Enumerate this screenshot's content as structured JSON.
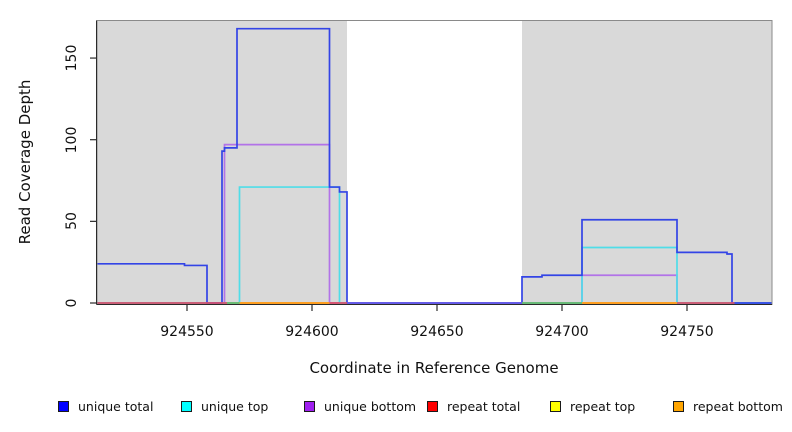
{
  "chart_data": {
    "type": "line",
    "title": "",
    "xlabel": "Coordinate in Reference Genome",
    "ylabel": "Read Coverage Depth",
    "xlim": [
      924514,
      924784
    ],
    "ylim": [
      0,
      173
    ],
    "x_ticks": [
      924550,
      924600,
      924650,
      924700,
      924750
    ],
    "y_ticks": [
      0,
      50,
      100,
      150
    ],
    "grid": false,
    "legend_position": "bottom",
    "shade_color": "#d9d9d9",
    "shaded_regions": [
      {
        "from": 924514,
        "to": 924614
      },
      {
        "from": 924684,
        "to": 924784
      }
    ],
    "series": [
      {
        "name": "repeat total",
        "line_color": "#d8506a",
        "legend_color": "#ff0000",
        "steps": [
          [
            924514,
            0
          ]
        ]
      },
      {
        "name": "repeat top",
        "line_color": "#e8e84a",
        "legend_color": "#ffff00",
        "steps": [
          [
            924514,
            0
          ]
        ]
      },
      {
        "name": "repeat bottom",
        "line_color": "#ff9d1e",
        "legend_color": "#ffa500",
        "steps": [
          [
            924514,
            0
          ]
        ]
      },
      {
        "name": "unique bottom",
        "line_color": "#b273e8",
        "legend_color": "#a020f0",
        "steps": [
          [
            924514,
            0
          ],
          [
            924565,
            97
          ],
          [
            924607,
            0
          ],
          [
            924708,
            17
          ],
          [
            924746,
            0
          ]
        ]
      },
      {
        "name": "unique top",
        "line_color": "#4fdde8",
        "legend_color": "#00ffff",
        "steps": [
          [
            924514,
            0
          ],
          [
            924571,
            71
          ],
          [
            924611,
            0
          ],
          [
            924708,
            34
          ],
          [
            924746,
            0
          ]
        ]
      },
      {
        "name": "unique total",
        "line_color": "#3344e6",
        "legend_color": "#0000ff",
        "steps": [
          [
            924514,
            24
          ],
          [
            924549,
            23
          ],
          [
            924558,
            0
          ],
          [
            924564,
            93
          ],
          [
            924565,
            95
          ],
          [
            924570,
            168
          ],
          [
            924607,
            71
          ],
          [
            924611,
            68
          ],
          [
            924614,
            0
          ],
          [
            924684,
            16
          ],
          [
            924692,
            17
          ],
          [
            924708,
            51
          ],
          [
            924746,
            31
          ],
          [
            924766,
            30
          ],
          [
            924768,
            0
          ]
        ]
      }
    ],
    "baseline_overlays": [
      {
        "from": 924514,
        "to": 924566,
        "color": "#d8506a"
      },
      {
        "from": 924566,
        "to": 924571,
        "color": "#67b969"
      },
      {
        "from": 924571,
        "to": 924607,
        "color": "#ff9d1e"
      },
      {
        "from": 924607,
        "to": 924614,
        "color": "#d8506a"
      },
      {
        "from": 924614,
        "to": 924684,
        "color": "#6b5be8"
      },
      {
        "from": 924684,
        "to": 924708,
        "color": "#67b969"
      },
      {
        "from": 924708,
        "to": 924746,
        "color": "#ff9d1e"
      },
      {
        "from": 924746,
        "to": 924769,
        "color": "#d8506a"
      }
    ],
    "legend": [
      {
        "label": "unique total",
        "color": "#0000ff"
      },
      {
        "label": "unique top",
        "color": "#00ffff"
      },
      {
        "label": "unique bottom",
        "color": "#a020f0"
      },
      {
        "label": "repeat total",
        "color": "#ff0000"
      },
      {
        "label": "repeat top",
        "color": "#ffff00"
      },
      {
        "label": "repeat bottom",
        "color": "#ffa500"
      }
    ]
  }
}
